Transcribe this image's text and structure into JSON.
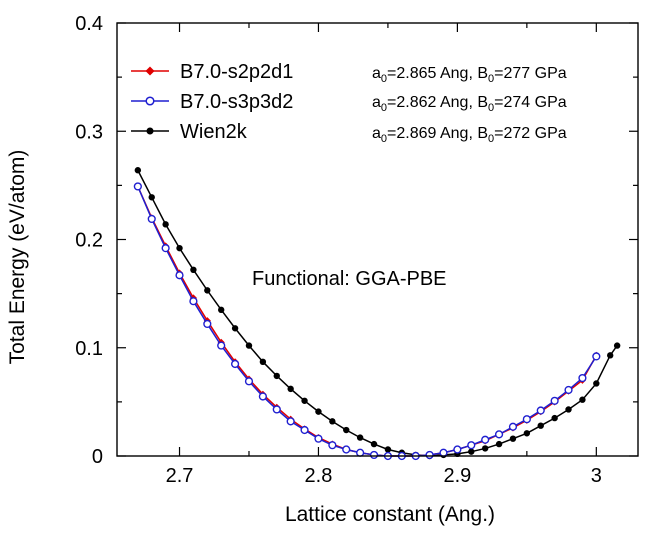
{
  "chart_data": {
    "type": "line",
    "title": "",
    "xlabel": "Lattice constant (Ang.)",
    "ylabel": "Total Energy (eV/atom)",
    "xlim": [
      2.655,
      3.03
    ],
    "ylim": [
      0,
      0.4
    ],
    "x_ticks": [
      "2.7",
      "2.8",
      "2.9",
      "3"
    ],
    "y_ticks": [
      "0",
      "0.1",
      "0.2",
      "0.3",
      "0.4"
    ],
    "grid": false,
    "legend_position": "top-left",
    "annotation": "Functional: GGA-PBE",
    "series": [
      {
        "name": "B7.0-s2p2d1",
        "color": "#e00000",
        "marker": "diamond-filled",
        "fit_text": {
          "a_label": "a",
          "a_sub": "0",
          "a_value": "=2.865 Ang, ",
          "b_label": "B",
          "b_sub": "0",
          "b_value": "=277 GPa"
        },
        "x": [
          2.67,
          2.68,
          2.69,
          2.7,
          2.71,
          2.72,
          2.73,
          2.74,
          2.75,
          2.76,
          2.77,
          2.78,
          2.79,
          2.8,
          2.81,
          2.82,
          2.83,
          2.84,
          2.85,
          2.86,
          2.87,
          2.88,
          2.89,
          2.9,
          2.91,
          2.92,
          2.93,
          2.94,
          2.95,
          2.96,
          2.97,
          2.98,
          2.99,
          3.0
        ],
        "y": [
          0.249,
          0.22,
          0.194,
          0.169,
          0.146,
          0.125,
          0.105,
          0.087,
          0.071,
          0.057,
          0.045,
          0.034,
          0.025,
          0.017,
          0.011,
          0.006,
          0.003,
          0.001,
          0.0,
          0.0,
          0.0,
          0.001,
          0.003,
          0.006,
          0.01,
          0.014,
          0.02,
          0.026,
          0.033,
          0.041,
          0.05,
          0.06,
          0.07,
          0.093
        ]
      },
      {
        "name": "B7.0-s3p3d2",
        "color": "#1f1fd0",
        "marker": "circle-open",
        "fit_text": {
          "a_label": "a",
          "a_sub": "0",
          "a_value": "=2.862 Ang, ",
          "b_label": "B",
          "b_sub": "0",
          "b_value": "=274 GPa"
        },
        "x": [
          2.67,
          2.68,
          2.69,
          2.7,
          2.71,
          2.72,
          2.73,
          2.74,
          2.75,
          2.76,
          2.77,
          2.78,
          2.79,
          2.8,
          2.81,
          2.82,
          2.83,
          2.84,
          2.85,
          2.86,
          2.87,
          2.88,
          2.89,
          2.9,
          2.91,
          2.92,
          2.93,
          2.94,
          2.95,
          2.96,
          2.97,
          2.98,
          2.99,
          3.0
        ],
        "y": [
          0.249,
          0.219,
          0.192,
          0.167,
          0.143,
          0.122,
          0.102,
          0.085,
          0.069,
          0.055,
          0.043,
          0.032,
          0.024,
          0.016,
          0.01,
          0.006,
          0.003,
          0.001,
          0.0,
          0.0,
          0.0,
          0.001,
          0.003,
          0.006,
          0.01,
          0.015,
          0.02,
          0.027,
          0.034,
          0.042,
          0.051,
          0.061,
          0.072,
          0.092
        ]
      },
      {
        "name": "Wien2k",
        "color": "#000000",
        "marker": "circle-filled",
        "fit_text": {
          "a_label": "a",
          "a_sub": "0",
          "a_value": "=2.869 Ang, ",
          "b_label": "B",
          "b_sub": "0",
          "b_value": "=272 GPa"
        },
        "x": [
          2.67,
          2.68,
          2.69,
          2.7,
          2.71,
          2.72,
          2.73,
          2.74,
          2.75,
          2.76,
          2.77,
          2.78,
          2.79,
          2.8,
          2.81,
          2.82,
          2.83,
          2.84,
          2.85,
          2.86,
          2.87,
          2.88,
          2.89,
          2.9,
          2.91,
          2.92,
          2.93,
          2.94,
          2.95,
          2.96,
          2.97,
          2.98,
          2.99,
          3.0,
          3.01,
          3.015
        ],
        "y": [
          0.264,
          0.239,
          0.214,
          0.192,
          0.172,
          0.153,
          0.135,
          0.118,
          0.102,
          0.087,
          0.074,
          0.062,
          0.051,
          0.041,
          0.032,
          0.024,
          0.017,
          0.011,
          0.006,
          0.003,
          0.001,
          0.0,
          0.001,
          0.002,
          0.004,
          0.007,
          0.011,
          0.016,
          0.021,
          0.028,
          0.035,
          0.043,
          0.052,
          0.067,
          0.093,
          0.102
        ]
      }
    ]
  }
}
